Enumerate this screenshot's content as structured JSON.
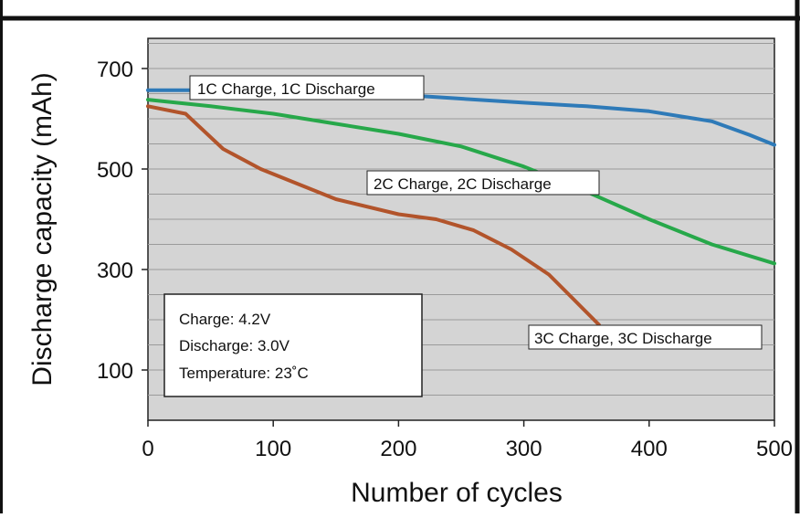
{
  "chart_data": {
    "type": "line",
    "title": "",
    "xlabel": "Number of cycles",
    "ylabel": "Discharge capacity (mAh)",
    "xlim": [
      0,
      500
    ],
    "ylim": [
      0,
      760
    ],
    "xticks": [
      0,
      100,
      200,
      300,
      400,
      500
    ],
    "yticks": [
      100,
      300,
      500,
      700
    ],
    "grid": true,
    "series": [
      {
        "name": "1C Charge, 1C Discharge",
        "color": "#2e7ab8",
        "points": [
          [
            0,
            657
          ],
          [
            50,
            657
          ],
          [
            100,
            655
          ],
          [
            150,
            652
          ],
          [
            200,
            648
          ],
          [
            250,
            640
          ],
          [
            300,
            632
          ],
          [
            350,
            625
          ],
          [
            400,
            615
          ],
          [
            450,
            595
          ],
          [
            480,
            568
          ],
          [
            500,
            548
          ]
        ]
      },
      {
        "name": "2C Charge, 2C Discharge",
        "color": "#27a84a",
        "points": [
          [
            0,
            638
          ],
          [
            50,
            625
          ],
          [
            100,
            610
          ],
          [
            150,
            590
          ],
          [
            200,
            570
          ],
          [
            250,
            545
          ],
          [
            300,
            505
          ],
          [
            350,
            455
          ],
          [
            400,
            400
          ],
          [
            450,
            350
          ],
          [
            500,
            312
          ]
        ]
      },
      {
        "name": "3C Charge, 3C Discharge",
        "color": "#b2542b",
        "points": [
          [
            0,
            625
          ],
          [
            30,
            610
          ],
          [
            60,
            540
          ],
          [
            90,
            500
          ],
          [
            120,
            470
          ],
          [
            150,
            440
          ],
          [
            200,
            410
          ],
          [
            230,
            400
          ],
          [
            260,
            378
          ],
          [
            290,
            340
          ],
          [
            320,
            290
          ],
          [
            340,
            240
          ],
          [
            360,
            190
          ]
        ]
      }
    ],
    "annotations": [
      "Charge: 4.2V",
      "Discharge: 3.0V",
      "Temperature: 23˚C"
    ]
  }
}
